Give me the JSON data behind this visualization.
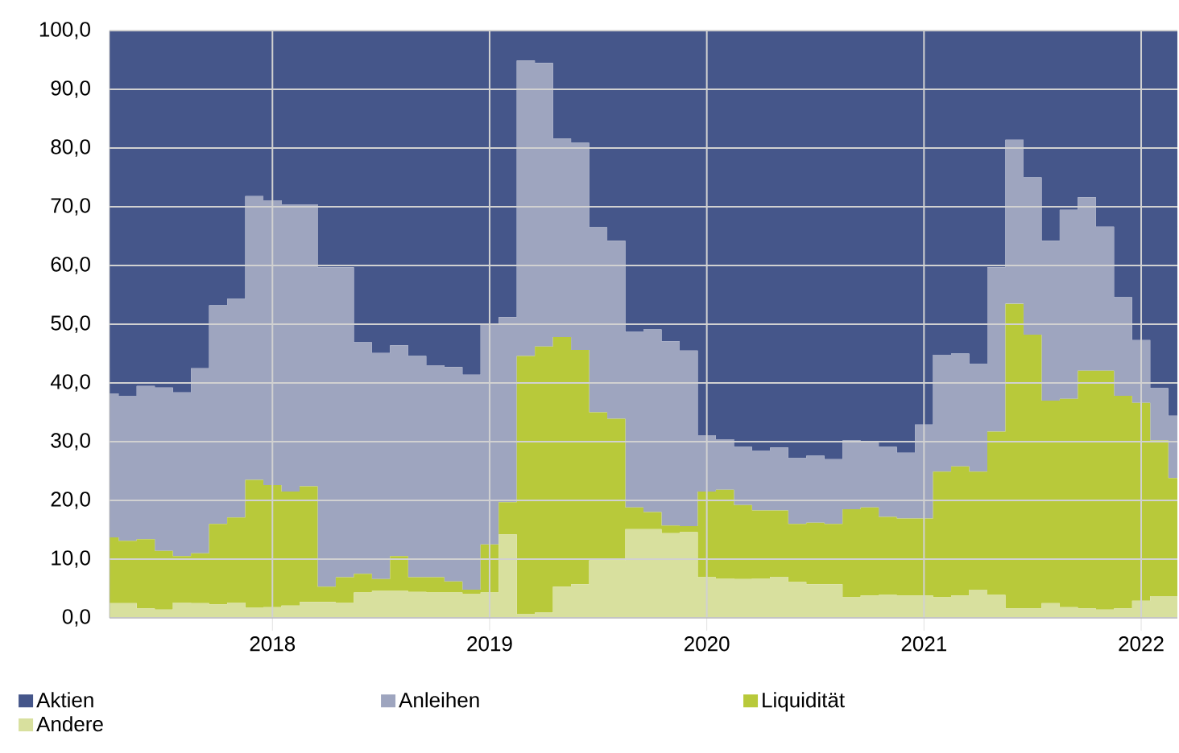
{
  "chart_data": {
    "type": "area",
    "stacked": true,
    "x": [
      "2017-04",
      "2017-05",
      "2017-06",
      "2017-07",
      "2017-08",
      "2017-09",
      "2017-10",
      "2017-11",
      "2017-12",
      "2018-01",
      "2018-02",
      "2018-03",
      "2018-04",
      "2018-05",
      "2018-06",
      "2018-07",
      "2018-08",
      "2018-09",
      "2018-10",
      "2018-11",
      "2018-12",
      "2019-01",
      "2019-02",
      "2019-03",
      "2019-04",
      "2019-05",
      "2019-06",
      "2019-07",
      "2019-08",
      "2019-09",
      "2019-10",
      "2019-11",
      "2019-12",
      "2020-01",
      "2020-02",
      "2020-03",
      "2020-04",
      "2020-05",
      "2020-06",
      "2020-07",
      "2020-08",
      "2020-09",
      "2020-10",
      "2020-11",
      "2020-12",
      "2021-01",
      "2021-02",
      "2021-03",
      "2021-04",
      "2021-05",
      "2021-06",
      "2021-07",
      "2021-08",
      "2021-09",
      "2021-10",
      "2021-11",
      "2021-12",
      "2022-01",
      "2022-02",
      "2022-03"
    ],
    "series": [
      {
        "name": "Andere",
        "color": "#d8e09e",
        "values": [
          2.5,
          2.5,
          1.6,
          1.4,
          2.6,
          2.5,
          2.3,
          2.6,
          1.7,
          1.8,
          2.1,
          2.7,
          2.7,
          2.6,
          4.3,
          4.6,
          4.6,
          4.4,
          4.3,
          4.3,
          4.1,
          4.3,
          14.2,
          0.6,
          0.9,
          5.3,
          5.7,
          9.8,
          9.8,
          15.1,
          15.1,
          14.4,
          14.6,
          6.9,
          6.7,
          6.6,
          6.7,
          7.0,
          6.1,
          5.7,
          5.7,
          3.5,
          3.8,
          3.9,
          3.8,
          3.8,
          3.5,
          3.8,
          4.8,
          3.9,
          1.6,
          1.6,
          2.5,
          1.8,
          1.6,
          1.4,
          1.6,
          2.9,
          3.7,
          3.7
        ]
      },
      {
        "name": "Liquidität",
        "color": "#b8c93a",
        "values": [
          11.2,
          10.6,
          11.8,
          10.0,
          7.9,
          8.5,
          13.7,
          14.5,
          21.8,
          20.8,
          19.4,
          19.7,
          2.6,
          4.3,
          3.2,
          2.0,
          5.9,
          2.5,
          2.6,
          1.9,
          0.7,
          8.2,
          5.5,
          44.0,
          45.3,
          42.5,
          39.9,
          25.2,
          24.1,
          3.7,
          2.9,
          1.3,
          1.0,
          14.6,
          15.1,
          12.6,
          11.6,
          11.3,
          9.9,
          10.5,
          10.3,
          15.0,
          15.0,
          13.3,
          13.1,
          13.1,
          21.4,
          22.0,
          20.1,
          27.8,
          51.9,
          46.6,
          34.5,
          35.5,
          40.5,
          40.7,
          36.2,
          33.7,
          26.5,
          20.1
        ]
      },
      {
        "name": "Anleihen",
        "color": "#9ea5bf",
        "values": [
          24.5,
          24.7,
          26.1,
          27.8,
          27.9,
          31.5,
          37.2,
          37.2,
          48.3,
          48.5,
          48.9,
          48.0,
          54.4,
          52.8,
          39.4,
          38.5,
          35.9,
          37.7,
          36.1,
          36.5,
          36.6,
          37.4,
          31.5,
          50.3,
          48.3,
          33.8,
          35.3,
          31.5,
          30.3,
          29.9,
          31.1,
          31.4,
          29.9,
          9.6,
          8.6,
          9.9,
          10.2,
          10.7,
          11.2,
          11.4,
          11.0,
          11.7,
          11.2,
          11.9,
          11.2,
          16.0,
          19.9,
          19.2,
          18.3,
          28.0,
          27.9,
          26.8,
          27.2,
          32.2,
          29.5,
          24.5,
          16.8,
          10.7,
          8.9,
          10.6
        ]
      },
      {
        "name": "Aktien",
        "color": "#45568a",
        "values": [
          61.8,
          62.2,
          60.5,
          60.8,
          61.6,
          57.5,
          46.8,
          45.7,
          28.2,
          28.9,
          29.6,
          29.6,
          40.3,
          40.3,
          53.1,
          54.9,
          53.6,
          55.4,
          57.0,
          57.3,
          58.6,
          50.1,
          48.8,
          5.1,
          5.5,
          18.4,
          19.1,
          33.5,
          35.8,
          51.3,
          50.9,
          52.9,
          54.5,
          68.9,
          69.6,
          70.9,
          71.5,
          71.0,
          72.8,
          72.4,
          73.0,
          69.8,
          70.0,
          70.9,
          71.9,
          67.1,
          55.2,
          55.0,
          56.8,
          40.3,
          18.6,
          25.0,
          35.8,
          30.5,
          28.4,
          33.4,
          45.4,
          52.7,
          60.9,
          65.6
        ]
      }
    ],
    "xlim": [
      "2017-04",
      "2022-03"
    ],
    "xticks": [
      {
        "value": "2018-01",
        "label": "2018"
      },
      {
        "value": "2019-01",
        "label": "2019"
      },
      {
        "value": "2020-01",
        "label": "2020"
      },
      {
        "value": "2021-01",
        "label": "2021"
      },
      {
        "value": "2022-01",
        "label": "2022"
      }
    ],
    "ylim": [
      0,
      100
    ],
    "yticks": [
      {
        "value": 0,
        "label": "0,0"
      },
      {
        "value": 10,
        "label": "10,0"
      },
      {
        "value": 20,
        "label": "20,0"
      },
      {
        "value": 30,
        "label": "30,0"
      },
      {
        "value": 40,
        "label": "40,0"
      },
      {
        "value": 50,
        "label": "50,0"
      },
      {
        "value": 60,
        "label": "60,0"
      },
      {
        "value": 70,
        "label": "70,0"
      },
      {
        "value": 80,
        "label": "80,0"
      },
      {
        "value": 90,
        "label": "90,0"
      },
      {
        "value": 100,
        "label": "100,0"
      }
    ],
    "grid": true,
    "legend": "bottom"
  }
}
